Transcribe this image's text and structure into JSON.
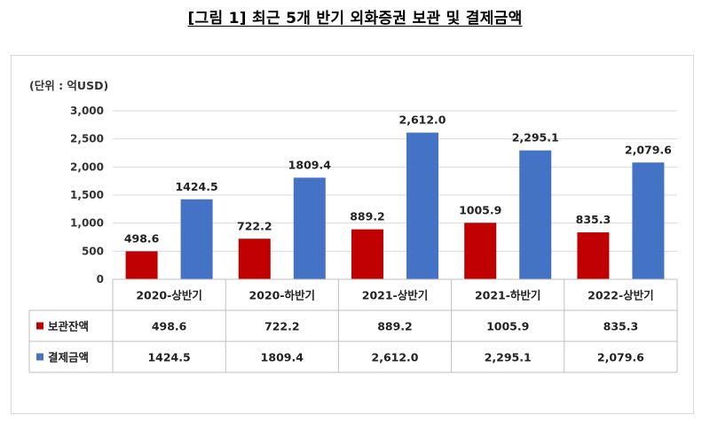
{
  "title": "[그림 1] 최근 5개 반기 외화증권 보관 및 결제금액",
  "chart_data": {
    "type": "bar",
    "unit_label": "(단위 : 억USD)",
    "categories": [
      "2020-상반기",
      "2020-하반기",
      "2021-상반기",
      "2021-하반기",
      "2022-상반기"
    ],
    "series": [
      {
        "name": "보관잔액",
        "color": "#c00000",
        "values": [
          498.6,
          722.2,
          889.2,
          1005.9,
          835.3
        ],
        "labels": [
          "498.6",
          "722.2",
          "889.2",
          "1005.9",
          "835.3"
        ]
      },
      {
        "name": "결제금액",
        "color": "#4472c4",
        "values": [
          1424.5,
          1809.4,
          2612.0,
          2295.1,
          2079.6
        ],
        "labels": [
          "1424.5",
          "1809.4",
          "2,612.0",
          "2,295.1",
          "2,079.6"
        ]
      }
    ],
    "ylim": [
      0,
      3000
    ],
    "yticks": [
      0,
      500,
      1000,
      1500,
      2000,
      2500,
      3000
    ],
    "ytick_labels": [
      "0",
      "500",
      "1,000",
      "1,500",
      "2,000",
      "2,500",
      "3,000"
    ],
    "grid": true,
    "legend": "data-table-left"
  }
}
